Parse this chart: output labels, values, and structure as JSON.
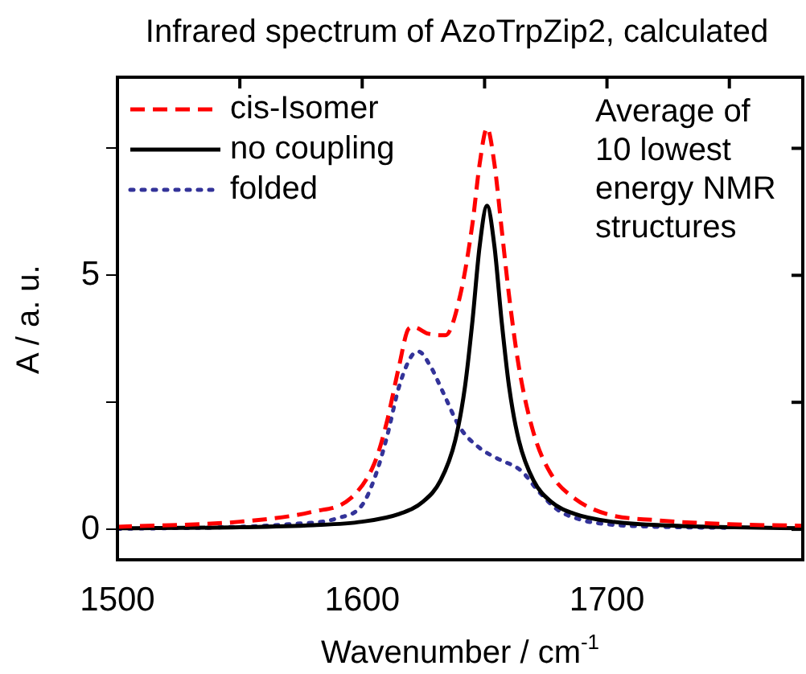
{
  "chart_data": {
    "type": "line",
    "title": "Infrared spectrum of AzoTrpZip2, calculated",
    "xlabel": "Wavenumber / cm$^{-1}$",
    "ylabel": "A / a. u.",
    "xlim": [
      1500,
      1780
    ],
    "xticks": [
      1500,
      {
        "value": 1550,
        "label": null
      },
      1600,
      {
        "value": 1650,
        "label": null
      },
      1700,
      {
        "value": 1750,
        "label": null
      }
    ],
    "ylim": [
      -0.6,
      8.9
    ],
    "yticks": [
      0,
      {
        "value": 2.5,
        "label": null
      },
      5,
      {
        "value": 7.5,
        "label": null
      }
    ],
    "grid": false,
    "legend": "top left",
    "marker": "none",
    "annotations": [
      "Average of 10 lowest energy NMR structures"
    ],
    "series": [
      {
        "name": "cis-Isomer",
        "color": "#ff0000",
        "line_style": "dashed",
        "x": [
          1500,
          1550,
          1580,
          1595,
          1605,
          1610,
          1615,
          1619,
          1621,
          1627,
          1634,
          1640,
          1645,
          1648,
          1651,
          1654,
          1657,
          1660,
          1664,
          1670,
          1677,
          1687,
          1700,
          1720,
          1750,
          1780
        ],
        "values": [
          0.05,
          0.15,
          0.35,
          0.6,
          1.3,
          2.1,
          3.2,
          3.95,
          3.98,
          3.85,
          3.82,
          4.6,
          6.0,
          7.2,
          7.9,
          7.2,
          5.9,
          4.6,
          3.2,
          1.9,
          1.1,
          0.6,
          0.3,
          0.18,
          0.1,
          0.07
        ]
      },
      {
        "name": "no coupling",
        "color": "#000000",
        "line_style": "solid",
        "x": [
          1500,
          1550,
          1580,
          1600,
          1615,
          1625,
          1632,
          1638,
          1642,
          1645,
          1648,
          1651,
          1654,
          1657,
          1660,
          1664,
          1670,
          1677,
          1687,
          1702,
          1722,
          1752,
          1780
        ],
        "values": [
          0.02,
          0.04,
          0.08,
          0.15,
          0.3,
          0.55,
          0.96,
          1.75,
          2.81,
          4.08,
          5.58,
          6.37,
          5.58,
          4.08,
          2.81,
          1.75,
          0.96,
          0.55,
          0.3,
          0.15,
          0.08,
          0.04,
          0.02
        ]
      },
      {
        "name": "folded",
        "color": "#333399",
        "line_style": "dotted",
        "x": [
          1500,
          1550,
          1570,
          1590,
          1600,
          1605,
          1610,
          1615,
          1620,
          1623,
          1628,
          1633,
          1640,
          1648,
          1655,
          1665,
          1672,
          1680,
          1690,
          1700,
          1720,
          1750
        ],
        "values": [
          0.01,
          0.05,
          0.1,
          0.22,
          0.48,
          1.0,
          1.8,
          2.8,
          3.4,
          3.5,
          3.2,
          2.7,
          2.0,
          1.6,
          1.4,
          1.15,
          0.75,
          0.38,
          0.18,
          0.1,
          0.05,
          0.03
        ]
      }
    ]
  }
}
